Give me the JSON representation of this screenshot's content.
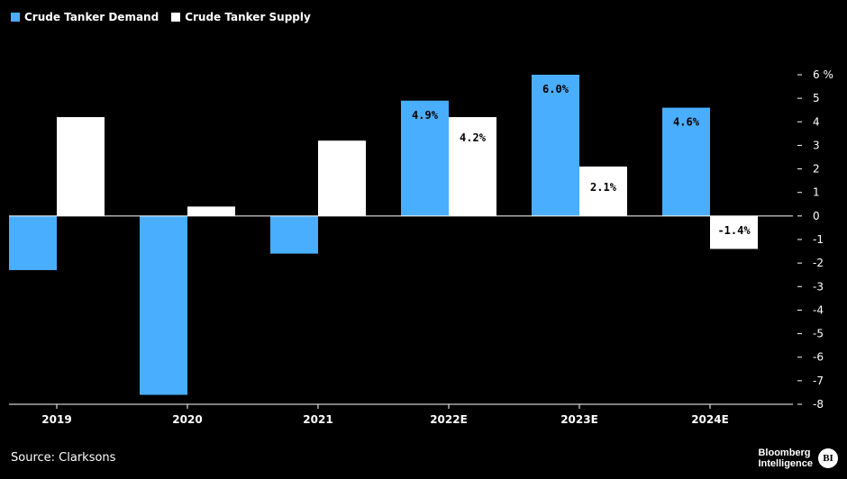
{
  "legend": {
    "demand_label": "Crude Tanker Demand",
    "supply_label": "Crude Tanker Supply"
  },
  "colors": {
    "demand": "#4aaeff",
    "supply": "#ffffff",
    "background": "#000000"
  },
  "source": "Source: Clarksons",
  "branding": {
    "line1": "Bloomberg",
    "line2": "Intelligence",
    "badge": "BI"
  },
  "chart_data": {
    "type": "bar",
    "categories": [
      "2019",
      "2020",
      "2021",
      "2022E",
      "2023E",
      "2024E"
    ],
    "series": [
      {
        "name": "Crude Tanker Demand",
        "values": [
          -2.3,
          -7.6,
          -1.6,
          4.9,
          6.0,
          4.6
        ]
      },
      {
        "name": "Crude Tanker Supply",
        "values": [
          4.2,
          0.4,
          3.2,
          4.2,
          2.1,
          -1.4
        ]
      }
    ],
    "data_labels": [
      {
        "series": 0,
        "index": 3,
        "text": "4.9%"
      },
      {
        "series": 1,
        "index": 3,
        "text": "4.2%"
      },
      {
        "series": 0,
        "index": 4,
        "text": "6.0%"
      },
      {
        "series": 1,
        "index": 4,
        "text": "2.1%"
      },
      {
        "series": 0,
        "index": 5,
        "text": "4.6%"
      },
      {
        "series": 1,
        "index": 5,
        "text": "-1.4%"
      }
    ],
    "y_ticks": [
      "6 %",
      "5",
      "4",
      "3",
      "2",
      "1",
      "0",
      "-1",
      "-2",
      "-3",
      "-4",
      "-5",
      "-6",
      "-7",
      "-8"
    ],
    "ylim": [
      -8,
      6
    ],
    "y_axis_position": "right",
    "grid": false,
    "legend_position": "top-left"
  }
}
